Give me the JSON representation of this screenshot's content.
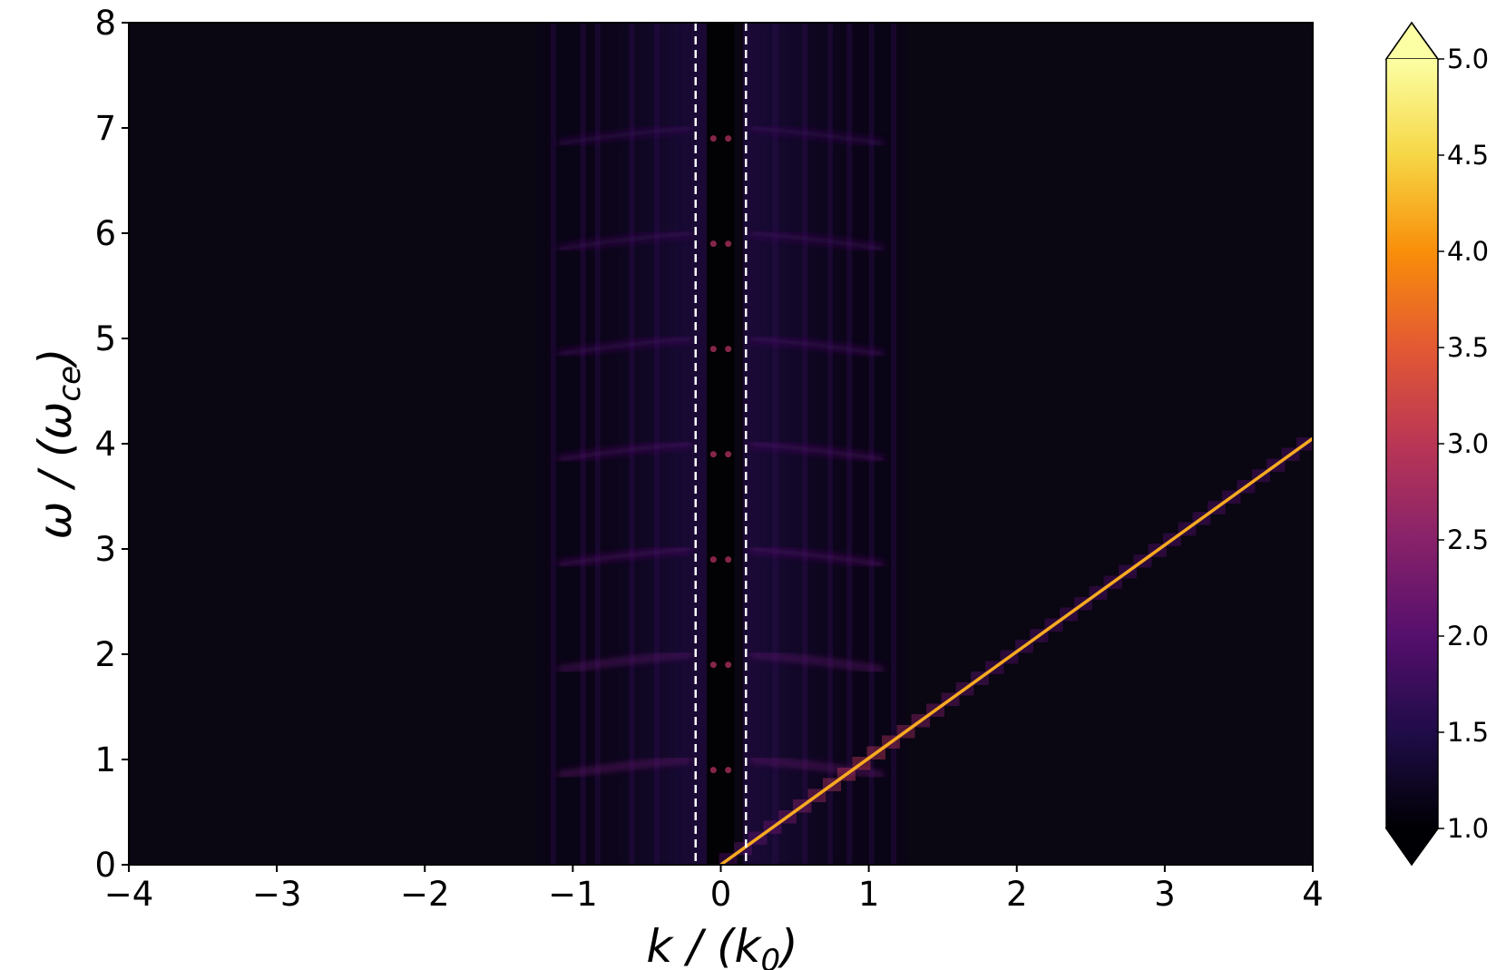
{
  "chart_data": {
    "type": "heatmap",
    "title": "",
    "xlabel": {
      "pre": "k / (k",
      "sub": "0",
      "post": ")"
    },
    "ylabel": {
      "pre": "ω / (ω",
      "sub": "ce",
      "post": ")"
    },
    "xlim": [
      -4,
      4
    ],
    "ylim": [
      0,
      8
    ],
    "x_ticks": [
      -4,
      -3,
      -2,
      -1,
      0,
      1,
      2,
      3,
      4
    ],
    "x_tick_labels": [
      "−4",
      "−3",
      "−2",
      "−1",
      "0",
      "1",
      "2",
      "3",
      "4"
    ],
    "y_ticks": [
      0,
      1,
      2,
      3,
      4,
      5,
      6,
      7,
      8
    ],
    "y_tick_labels": [
      "0",
      "1",
      "2",
      "3",
      "4",
      "5",
      "6",
      "7",
      "8"
    ],
    "colorbar": {
      "colormap": "inferno",
      "range": [
        1.0,
        5.0
      ],
      "extend": "both",
      "ticks": [
        1.0,
        1.5,
        2.0,
        2.5,
        3.0,
        3.5,
        4.0,
        4.5,
        5.0
      ],
      "tick_labels": [
        "1.0",
        "1.5",
        "2.0",
        "2.5",
        "3.0",
        "3.5",
        "4.0",
        "4.5",
        "5.0"
      ]
    },
    "reference_lines": [
      {
        "orientation": "vertical",
        "x": -0.17,
        "style": "dashed",
        "color": "#ffffff"
      },
      {
        "orientation": "vertical",
        "x": 0.17,
        "style": "dashed",
        "color": "#ffffff"
      }
    ],
    "dispersion_line": {
      "from": [
        0,
        0
      ],
      "to": [
        4,
        4.05
      ],
      "peak_value": 4.2
    },
    "cyclotron_harmonics": [
      1,
      2,
      3,
      4,
      5,
      6,
      7
    ],
    "background_value": 1.15
  }
}
